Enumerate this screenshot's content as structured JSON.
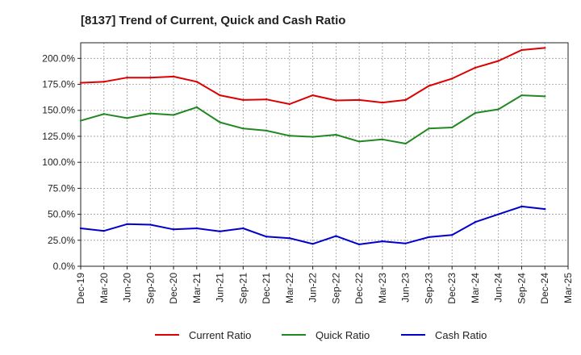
{
  "chart_data": {
    "type": "line",
    "title": "[8137]  Trend of Current, Quick and Cash Ratio",
    "xlabel": "",
    "ylabel": "",
    "ylim": [
      0,
      215
    ],
    "y_ticks": [
      0,
      25,
      50,
      75,
      100,
      125,
      150,
      175,
      200
    ],
    "y_tick_labels": [
      "0.0%",
      "25.0%",
      "50.0%",
      "75.0%",
      "100.0%",
      "125.0%",
      "150.0%",
      "175.0%",
      "200.0%"
    ],
    "x_tick_labels": [
      "Dec-19",
      "Mar-20",
      "Jun-20",
      "Sep-20",
      "Dec-20",
      "Mar-21",
      "Jun-21",
      "Sep-21",
      "Dec-21",
      "Mar-22",
      "Jun-22",
      "Sep-22",
      "Dec-22",
      "Mar-23",
      "Jun-23",
      "Sep-23",
      "Dec-23",
      "Mar-24",
      "Jun-24",
      "Sep-24",
      "Dec-24",
      "Mar-25"
    ],
    "categories": [
      "Dec-19",
      "Mar-20",
      "Jun-20",
      "Sep-20",
      "Dec-20",
      "Mar-21",
      "Jun-21",
      "Sep-21",
      "Dec-21",
      "Mar-22",
      "Jun-22",
      "Sep-22",
      "Dec-22",
      "Mar-23",
      "Jun-23",
      "Sep-23",
      "Dec-23",
      "Mar-24",
      "Jun-24",
      "Sep-24",
      "Dec-24"
    ],
    "grid": true,
    "legend_position": "bottom",
    "series": [
      {
        "name": "Current Ratio",
        "color": "#dd0000",
        "values": [
          176.5,
          177.5,
          181.5,
          181.5,
          182.5,
          177.5,
          164.5,
          160.0,
          160.5,
          156.0,
          164.5,
          159.5,
          160.0,
          157.5,
          160.0,
          173.5,
          180.5,
          191.0,
          197.5,
          208.0,
          210.0
        ]
      },
      {
        "name": "Quick Ratio",
        "color": "#228822",
        "values": [
          140.0,
          146.5,
          142.5,
          147.0,
          145.5,
          153.0,
          138.5,
          132.5,
          130.5,
          125.5,
          124.5,
          126.5,
          120.0,
          122.0,
          118.0,
          132.5,
          133.5,
          147.5,
          151.0,
          164.5,
          163.5
        ]
      },
      {
        "name": "Cash Ratio",
        "color": "#0000cc",
        "values": [
          36.5,
          34.0,
          40.5,
          40.0,
          35.5,
          36.5,
          33.5,
          36.5,
          28.5,
          27.0,
          21.5,
          29.0,
          21.0,
          24.0,
          22.0,
          28.0,
          30.0,
          42.5,
          50.0,
          57.5,
          55.0
        ]
      }
    ]
  }
}
